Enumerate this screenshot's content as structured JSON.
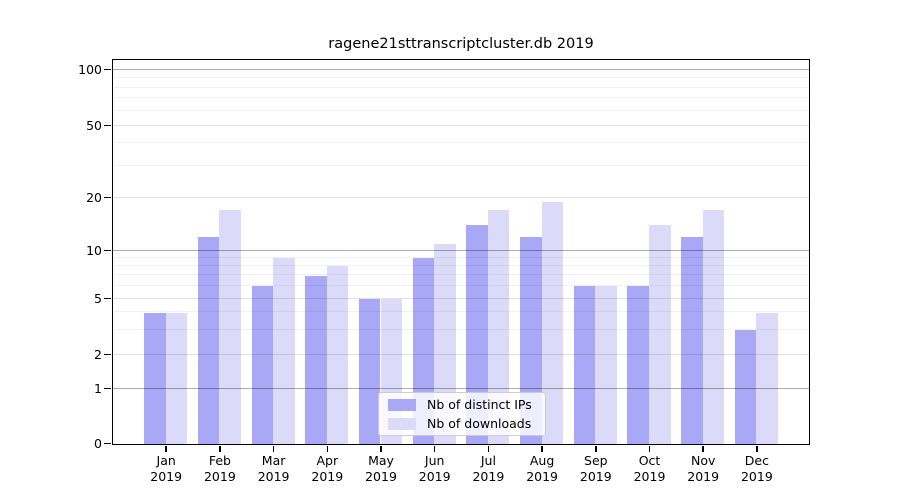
{
  "chart_data": {
    "type": "bar",
    "title": "ragene21sttranscriptcluster.db 2019",
    "categories": [
      "Jan 2019",
      "Feb 2019",
      "Mar 2019",
      "Apr 2019",
      "May 2019",
      "Jun 2019",
      "Jul 2019",
      "Aug 2019",
      "Sep 2019",
      "Oct 2019",
      "Nov 2019",
      "Dec 2019"
    ],
    "series": [
      {
        "name": "Nb of distinct IPs",
        "color": "#a8a8f6",
        "values": [
          4,
          12,
          6,
          7,
          5,
          9,
          14,
          12,
          6,
          6,
          12,
          3
        ]
      },
      {
        "name": "Nb of downloads",
        "color": "#dbdbf9",
        "values": [
          4,
          17,
          9,
          8,
          5,
          11,
          17,
          19,
          6,
          14,
          17,
          4
        ]
      }
    ],
    "y_axis": {
      "scale": "log-like with zero baseline",
      "ticks": [
        0,
        1,
        2,
        5,
        10,
        20,
        50,
        100
      ],
      "mid_gridlines": [
        2,
        5,
        20,
        50
      ],
      "minor_gridlines": [
        3,
        4,
        6,
        7,
        8,
        9,
        30,
        40,
        60,
        70,
        80,
        90
      ],
      "range": [
        0,
        100
      ]
    },
    "legend": {
      "position": "inside-bottom-center"
    },
    "grid": "on"
  }
}
